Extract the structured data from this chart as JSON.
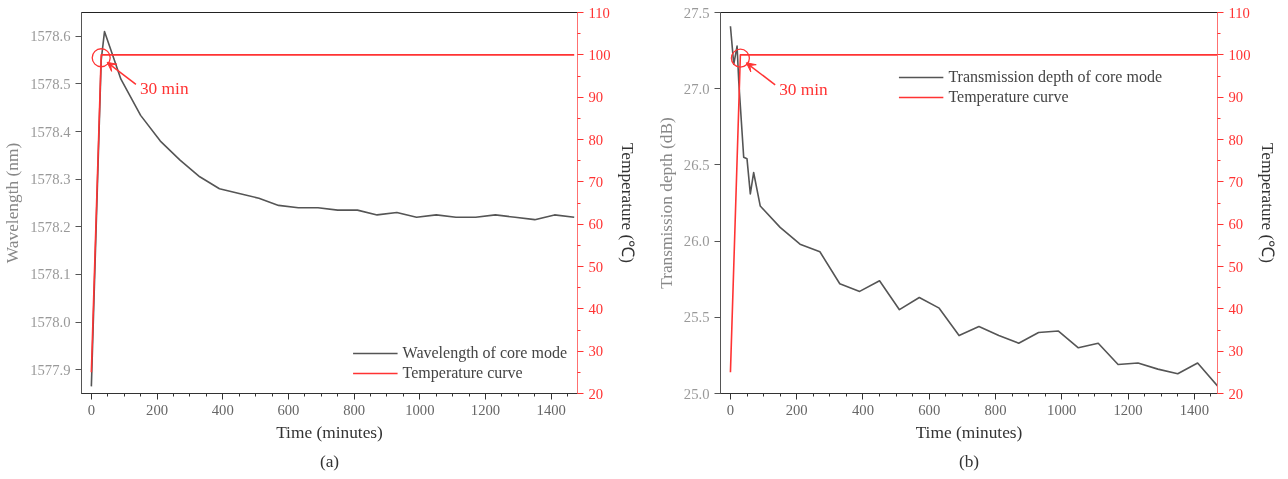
{
  "chart_data": [
    {
      "type": "line",
      "xlabel": "Time (minutes)",
      "ylabel": "Wavelength (nm)",
      "y2label": "Temperature (℃)",
      "legend": "bottom right",
      "grid": false,
      "xlim": [
        -30,
        1480
      ],
      "xticks": [
        0,
        200,
        400,
        600,
        800,
        1000,
        1200,
        1400
      ],
      "ylim": [
        1577.85,
        1578.65
      ],
      "yticks": [
        1577.9,
        {
          "value": 1578.0,
          "label": "1578.0"
        },
        1578.1,
        1578.2,
        1578.3,
        1578.4,
        1578.5,
        1578.6
      ],
      "y2lim": [
        20,
        110
      ],
      "y2ticks": [
        20,
        30,
        40,
        50,
        60,
        70,
        80,
        90,
        100,
        110
      ],
      "annotations": [
        {
          "text": "30 min",
          "x": 30,
          "y": 1578.555
        },
        "(a)"
      ],
      "series": [
        {
          "name": "Wavelength of core mode",
          "color": "#555555",
          "x": [
            0,
            30,
            40,
            60,
            90,
            150,
            210,
            270,
            330,
            390,
            450,
            510,
            570,
            630,
            690,
            750,
            810,
            870,
            930,
            990,
            1050,
            1110,
            1170,
            1230,
            1290,
            1350,
            1410,
            1470
          ],
          "values": [
            1577.865,
            1578.55,
            1578.61,
            1578.57,
            1578.51,
            1578.434,
            1578.38,
            1578.34,
            1578.305,
            1578.28,
            1578.27,
            1578.26,
            1578.245,
            1578.24,
            1578.24,
            1578.235,
            1578.235,
            1578.225,
            1578.23,
            1578.22,
            1578.225,
            1578.22,
            1578.22,
            1578.225,
            1578.22,
            1578.215,
            1578.225,
            1578.22
          ]
        },
        {
          "name": "Temperature curve",
          "color": "#ff3333",
          "axis": "y2",
          "x": [
            0,
            30,
            1470
          ],
          "values": [
            25,
            100,
            100
          ]
        }
      ]
    },
    {
      "type": "line",
      "xlabel": "Time (minutes)",
      "ylabel": "Transmission depth (dB)",
      "y2label": "Temperature (℃)",
      "legend": "top right",
      "grid": false,
      "xlim": [
        -30,
        1470
      ],
      "xticks": [
        0,
        200,
        400,
        600,
        800,
        1000,
        1200,
        1400
      ],
      "ylim": [
        25.0,
        27.5
      ],
      "yticks": [
        {
          "value": 25.0,
          "label": "25.0"
        },
        25.5,
        {
          "value": 26.0,
          "label": "26.0"
        },
        26.5,
        {
          "value": 27.0,
          "label": "27.0"
        },
        27.5
      ],
      "y2lim": [
        20,
        110
      ],
      "y2ticks": [
        20,
        30,
        40,
        50,
        60,
        70,
        80,
        90,
        100,
        110
      ],
      "annotations": [
        {
          "text": "30 min",
          "x": 30,
          "y": 27.2
        },
        "(b)"
      ],
      "series": [
        {
          "name": "Transmission depth of core mode",
          "color": "#555555",
          "x": [
            0,
            10,
            20,
            25,
            40,
            50,
            60,
            70,
            90,
            150,
            210,
            270,
            330,
            390,
            450,
            510,
            570,
            630,
            690,
            750,
            810,
            870,
            930,
            990,
            1050,
            1110,
            1170,
            1230,
            1290,
            1350,
            1410,
            1470
          ],
          "values": [
            27.41,
            27.16,
            27.28,
            27.05,
            26.55,
            26.54,
            26.31,
            26.45,
            26.23,
            26.09,
            25.98,
            25.93,
            25.72,
            25.67,
            25.74,
            25.55,
            25.63,
            25.56,
            25.38,
            25.44,
            25.38,
            25.33,
            25.4,
            25.41,
            25.3,
            25.33,
            25.19,
            25.2,
            25.16,
            25.13,
            25.2,
            25.05
          ]
        },
        {
          "name": "Temperature curve",
          "color": "#ff3333",
          "axis": "y2",
          "x": [
            0,
            30,
            1470
          ],
          "values": [
            25,
            100,
            100
          ]
        }
      ]
    }
  ]
}
